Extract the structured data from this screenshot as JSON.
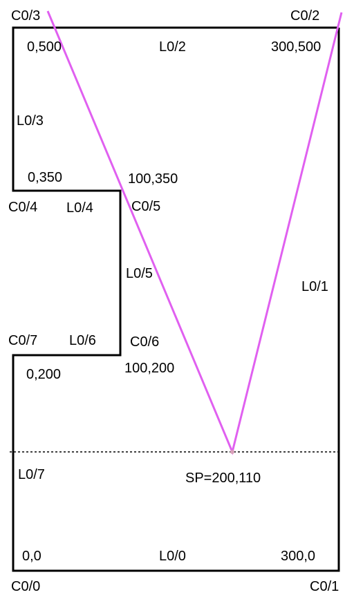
{
  "colors": {
    "outline": "#000000",
    "ray": "#e060f0",
    "dotted_line": "#000000",
    "background": "#ffffff"
  },
  "corners": {
    "c00": "C0/0",
    "c01": "C0/1",
    "c02": "C0/2",
    "c03": "C0/3",
    "c04": "C0/4",
    "c05": "C0/5",
    "c06": "C0/6",
    "c07": "C0/7"
  },
  "lines": {
    "l00": "L0/0",
    "l01": "L0/1",
    "l02": "L0/2",
    "l03": "L0/3",
    "l04": "L0/4",
    "l05": "L0/5",
    "l06": "L0/6",
    "l07": "L0/7"
  },
  "coordinates": {
    "p_0_0": "0,0",
    "p_300_0": "300,0",
    "p_0_200": "0,200",
    "p_100_200": "100,200",
    "p_0_350": "0,350",
    "p_100_350": "100,350",
    "p_0_500": "0,500",
    "p_300_500": "300,500"
  },
  "sample_point": "SP=200,110"
}
